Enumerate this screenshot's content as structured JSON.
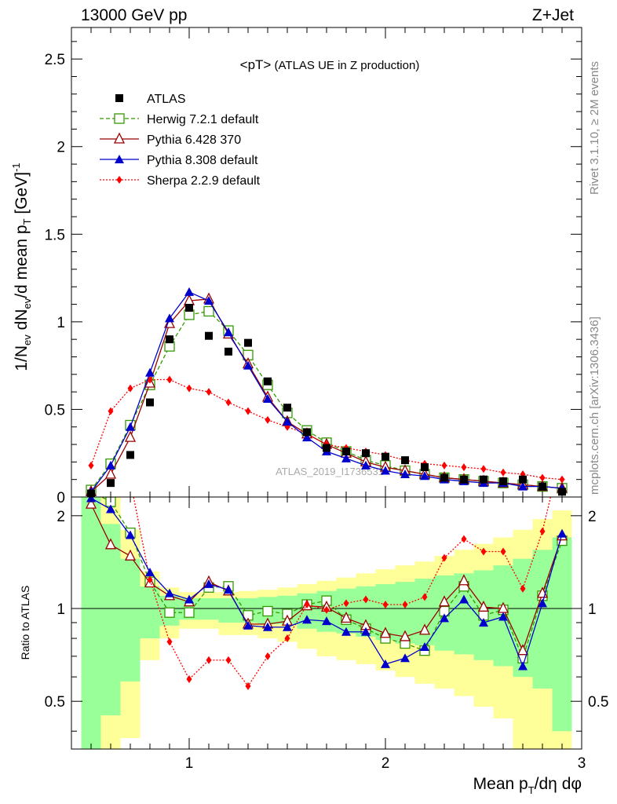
{
  "header": {
    "left": "13000 GeV pp",
    "right": "Z+Jet"
  },
  "side": {
    "rivet": "Rivet 3.1.10, ≥ 2M events",
    "mcplots": "mcplots.cern.ch [arXiv:1306.3436]"
  },
  "chart_data": {
    "type": "line",
    "title": "<pT>",
    "subtitle": " (ATLAS UE in Z production)",
    "watermark": "ATLAS_2019_I1736531",
    "xlabel": "Mean p",
    "xlabel_sub": "T",
    "xlabel_rest": "/dη dφ",
    "ylabel": "1/N",
    "ylabel_sub1": "ev",
    "ylabel_mid": " dN",
    "ylabel_sub2": "ev",
    "ylabel_rest": "/d mean p",
    "ylabel_sub3": "T",
    "ylabel_unit": " [GeV]",
    "ylabel_sup": "-1",
    "xlim": [
      0.4,
      3.0
    ],
    "ylim": [
      0,
      2.68
    ],
    "xticks": [
      "1",
      "2",
      "3"
    ],
    "xtick_values": [
      1,
      2,
      3
    ],
    "yticks": [
      "0",
      "0.5",
      "1",
      "1.5",
      "2",
      "2.5"
    ],
    "ytick_values": [
      0,
      0.5,
      1,
      1.5,
      2,
      2.5
    ],
    "ratio_ylabel": "Ratio to ATLAS",
    "ratio_ylim": [
      0.35,
      2.3
    ],
    "ratio_yticks": [
      "0.5",
      "1",
      "2"
    ],
    "ratio_ytick_values": [
      0.5,
      1,
      2
    ],
    "x": [
      0.5,
      0.6,
      0.7,
      0.8,
      0.9,
      1.0,
      1.1,
      1.2,
      1.3,
      1.4,
      1.5,
      1.6,
      1.7,
      1.8,
      1.9,
      2.0,
      2.1,
      2.2,
      2.3,
      2.4,
      2.5,
      2.6,
      2.7,
      2.8,
      2.9
    ],
    "series": [
      {
        "name": "ATLAS",
        "color": "#000000",
        "marker": "square-filled",
        "line": "none",
        "values": [
          0.02,
          0.08,
          0.24,
          0.54,
          0.9,
          1.08,
          0.92,
          0.83,
          0.88,
          0.66,
          0.51,
          0.37,
          0.28,
          0.26,
          0.25,
          0.23,
          0.21,
          0.17,
          0.11,
          0.1,
          0.1,
          0.09,
          0.1,
          0.06,
          0.03
        ],
        "ratio": []
      },
      {
        "name": "Herwig 7.2.1 default",
        "color": "#339900",
        "marker": "square-open",
        "line": "dashed",
        "values": [
          0.04,
          0.19,
          0.41,
          0.64,
          0.86,
          1.04,
          1.06,
          0.95,
          0.81,
          0.64,
          0.48,
          0.38,
          0.31,
          0.26,
          0.21,
          0.18,
          0.15,
          0.13,
          0.11,
          0.1,
          0.09,
          0.08,
          0.07,
          0.06,
          0.05
        ],
        "ratio": [
          2.4,
          2.22,
          1.76,
          1.22,
          0.97,
          0.97,
          1.17,
          1.18,
          0.95,
          0.98,
          0.96,
          1.03,
          1.06,
          0.92,
          0.86,
          0.8,
          0.77,
          0.73,
          0.98,
          1.18,
          0.95,
          0.99,
          0.69,
          1.1,
          1.66
        ]
      },
      {
        "name": "Pythia 6.428 370",
        "color": "#990000",
        "marker": "triangle-open",
        "line": "solid",
        "values": [
          0.03,
          0.13,
          0.34,
          0.65,
          0.99,
          1.12,
          1.13,
          0.93,
          0.76,
          0.57,
          0.43,
          0.36,
          0.3,
          0.25,
          0.2,
          0.17,
          0.15,
          0.13,
          0.11,
          0.1,
          0.09,
          0.08,
          0.07,
          0.06,
          0.05
        ],
        "ratio": [
          2.18,
          1.61,
          1.48,
          1.21,
          1.1,
          1.05,
          1.22,
          1.14,
          0.89,
          0.89,
          0.91,
          1.02,
          1.01,
          0.93,
          0.88,
          0.83,
          0.81,
          0.85,
          1.05,
          1.23,
          1.01,
          1.0,
          0.73,
          1.12,
          1.72
        ]
      },
      {
        "name": "Pythia 8.308 default",
        "color": "#0000cc",
        "marker": "triangle-filled",
        "line": "solid",
        "values": [
          0.03,
          0.18,
          0.4,
          0.71,
          1.02,
          1.17,
          1.12,
          0.94,
          0.75,
          0.56,
          0.43,
          0.34,
          0.26,
          0.22,
          0.18,
          0.15,
          0.13,
          0.12,
          0.1,
          0.09,
          0.08,
          0.08,
          0.06,
          0.06,
          0.05
        ],
        "ratio": [
          2.28,
          2.1,
          1.73,
          1.31,
          1.12,
          1.07,
          1.2,
          1.15,
          0.88,
          0.87,
          0.87,
          0.92,
          0.91,
          0.84,
          0.84,
          0.66,
          0.69,
          0.75,
          0.93,
          1.07,
          0.9,
          0.94,
          0.65,
          1.04,
          1.75
        ]
      },
      {
        "name": "Sherpa 2.2.9 default",
        "color": "#ff0000",
        "marker": "diamond-filled",
        "line": "dotted",
        "values": [
          0.18,
          0.49,
          0.62,
          0.67,
          0.67,
          0.62,
          0.6,
          0.54,
          0.49,
          0.44,
          0.4,
          0.36,
          0.3,
          0.28,
          0.26,
          0.24,
          0.21,
          0.19,
          0.18,
          0.17,
          0.16,
          0.14,
          0.13,
          0.11,
          0.1
        ],
        "ratio": [
          9.0,
          6.1,
          2.6,
          1.24,
          0.78,
          0.59,
          0.68,
          0.68,
          0.56,
          0.7,
          0.8,
          1.03,
          0.99,
          1.04,
          1.07,
          1.03,
          1.03,
          1.09,
          1.46,
          1.68,
          1.53,
          1.53,
          1.16,
          1.78,
          3.3
        ]
      }
    ],
    "bands": {
      "x_edges": [
        0.45,
        0.55,
        0.65,
        0.75,
        0.85,
        0.95,
        1.05,
        1.15,
        1.25,
        1.35,
        1.45,
        1.55,
        1.65,
        1.75,
        1.85,
        1.95,
        2.05,
        2.15,
        2.25,
        2.35,
        2.45,
        2.55,
        2.65,
        2.75,
        2.85,
        2.95
      ],
      "inner_lo": [
        0.35,
        0.45,
        0.58,
        0.8,
        0.88,
        0.92,
        0.92,
        0.9,
        0.9,
        0.89,
        0.89,
        0.86,
        0.84,
        0.83,
        0.81,
        0.79,
        0.77,
        0.76,
        0.73,
        0.71,
        0.68,
        0.65,
        0.6,
        0.55,
        0.4
      ],
      "inner_hi": [
        2.3,
        1.88,
        1.45,
        1.18,
        1.1,
        1.08,
        1.08,
        1.08,
        1.08,
        1.09,
        1.1,
        1.12,
        1.14,
        1.16,
        1.18,
        1.2,
        1.22,
        1.25,
        1.28,
        1.3,
        1.33,
        1.38,
        1.45,
        1.55,
        1.7
      ],
      "outer_lo": [
        0.35,
        0.35,
        0.38,
        0.68,
        0.8,
        0.86,
        0.86,
        0.82,
        0.82,
        0.8,
        0.78,
        0.74,
        0.7,
        0.68,
        0.66,
        0.63,
        0.6,
        0.57,
        0.55,
        0.52,
        0.48,
        0.44,
        0.35,
        0.35,
        0.35
      ],
      "outer_hi": [
        2.3,
        2.3,
        1.8,
        1.32,
        1.17,
        1.13,
        1.13,
        1.13,
        1.14,
        1.15,
        1.17,
        1.2,
        1.23,
        1.26,
        1.3,
        1.34,
        1.38,
        1.42,
        1.48,
        1.55,
        1.62,
        1.7,
        1.8,
        1.95,
        2.08
      ]
    }
  }
}
